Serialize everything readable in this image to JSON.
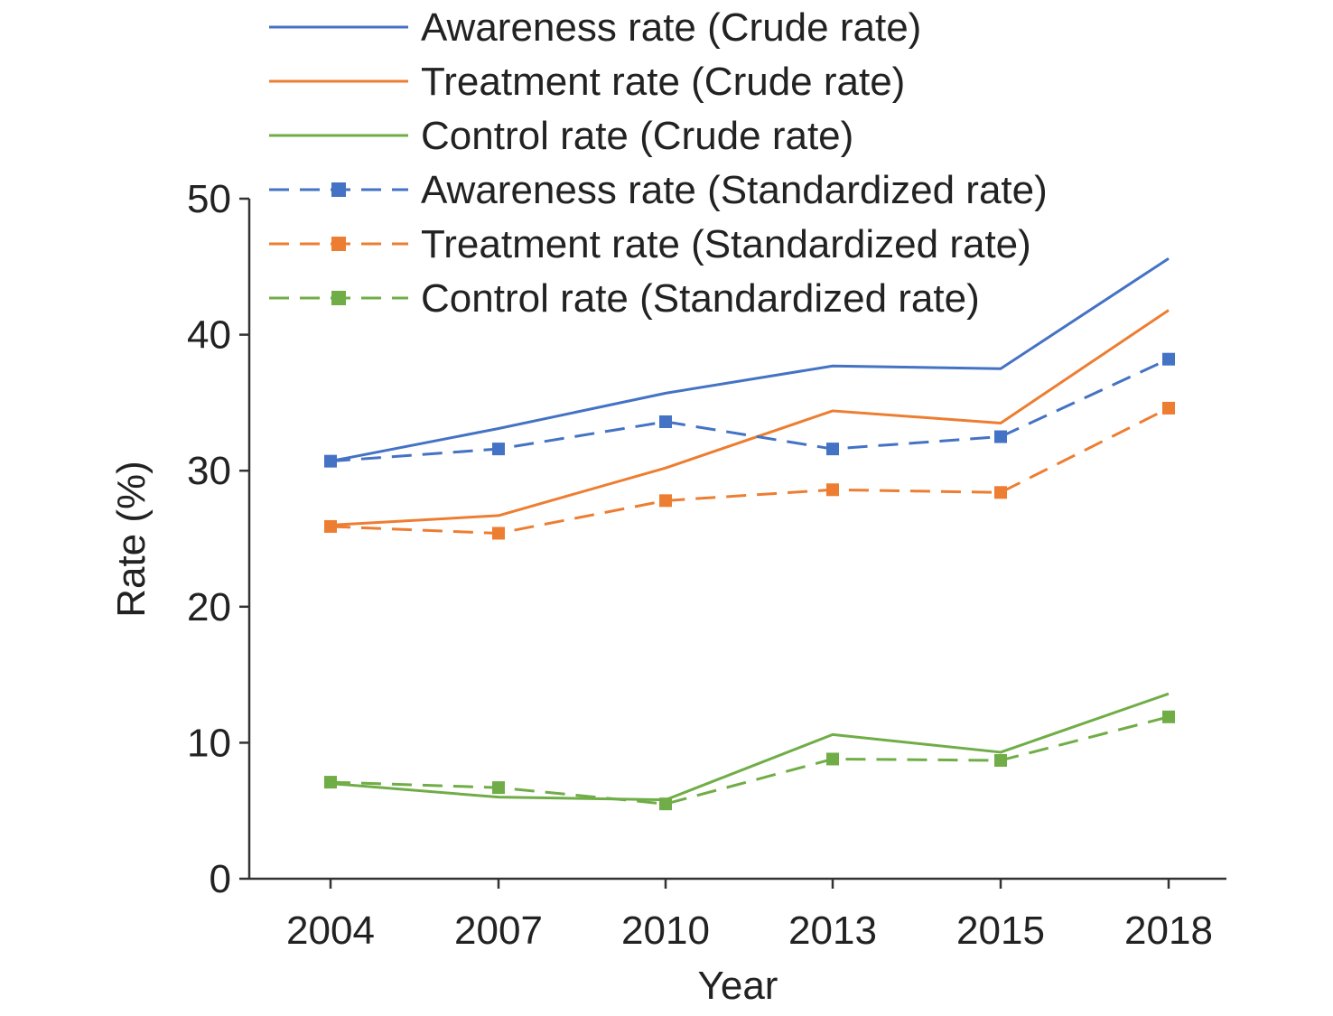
{
  "chart_data": {
    "type": "line",
    "title": "",
    "xlabel": "Year",
    "ylabel": "Rate (%)",
    "categories": [
      "2004",
      "2007",
      "2010",
      "2013",
      "2015",
      "2018"
    ],
    "ylim": [
      0,
      50
    ],
    "yticks": [
      0,
      10,
      20,
      30,
      40,
      50
    ],
    "grid": false,
    "legend_position": "top",
    "series": [
      {
        "name": "Awareness rate (Crude rate)",
        "values": [
          30.7,
          33.1,
          35.7,
          37.7,
          37.5,
          45.6
        ],
        "color": "#4472C4",
        "style": "solid",
        "marker": "none"
      },
      {
        "name": "Treatment rate (Crude rate)",
        "values": [
          26.0,
          26.7,
          30.2,
          34.4,
          33.5,
          41.8
        ],
        "color": "#ED7D31",
        "style": "solid",
        "marker": "none"
      },
      {
        "name": "Control rate (Crude rate)",
        "values": [
          7.0,
          6.0,
          5.8,
          10.6,
          9.3,
          13.6
        ],
        "color": "#70AD47",
        "style": "solid",
        "marker": "none"
      },
      {
        "name": "Awareness rate (Standardized rate)",
        "values": [
          30.7,
          31.6,
          33.6,
          31.6,
          32.5,
          38.2
        ],
        "color": "#4472C4",
        "style": "dashed",
        "marker": "square"
      },
      {
        "name": "Treatment rate (Standardized rate)",
        "values": [
          25.9,
          25.4,
          27.8,
          28.6,
          28.4,
          34.6
        ],
        "color": "#ED7D31",
        "style": "dashed",
        "marker": "square"
      },
      {
        "name": "Control rate (Standardized rate)",
        "values": [
          7.1,
          6.7,
          5.5,
          8.8,
          8.7,
          11.9
        ],
        "color": "#70AD47",
        "style": "dashed",
        "marker": "square"
      }
    ]
  }
}
